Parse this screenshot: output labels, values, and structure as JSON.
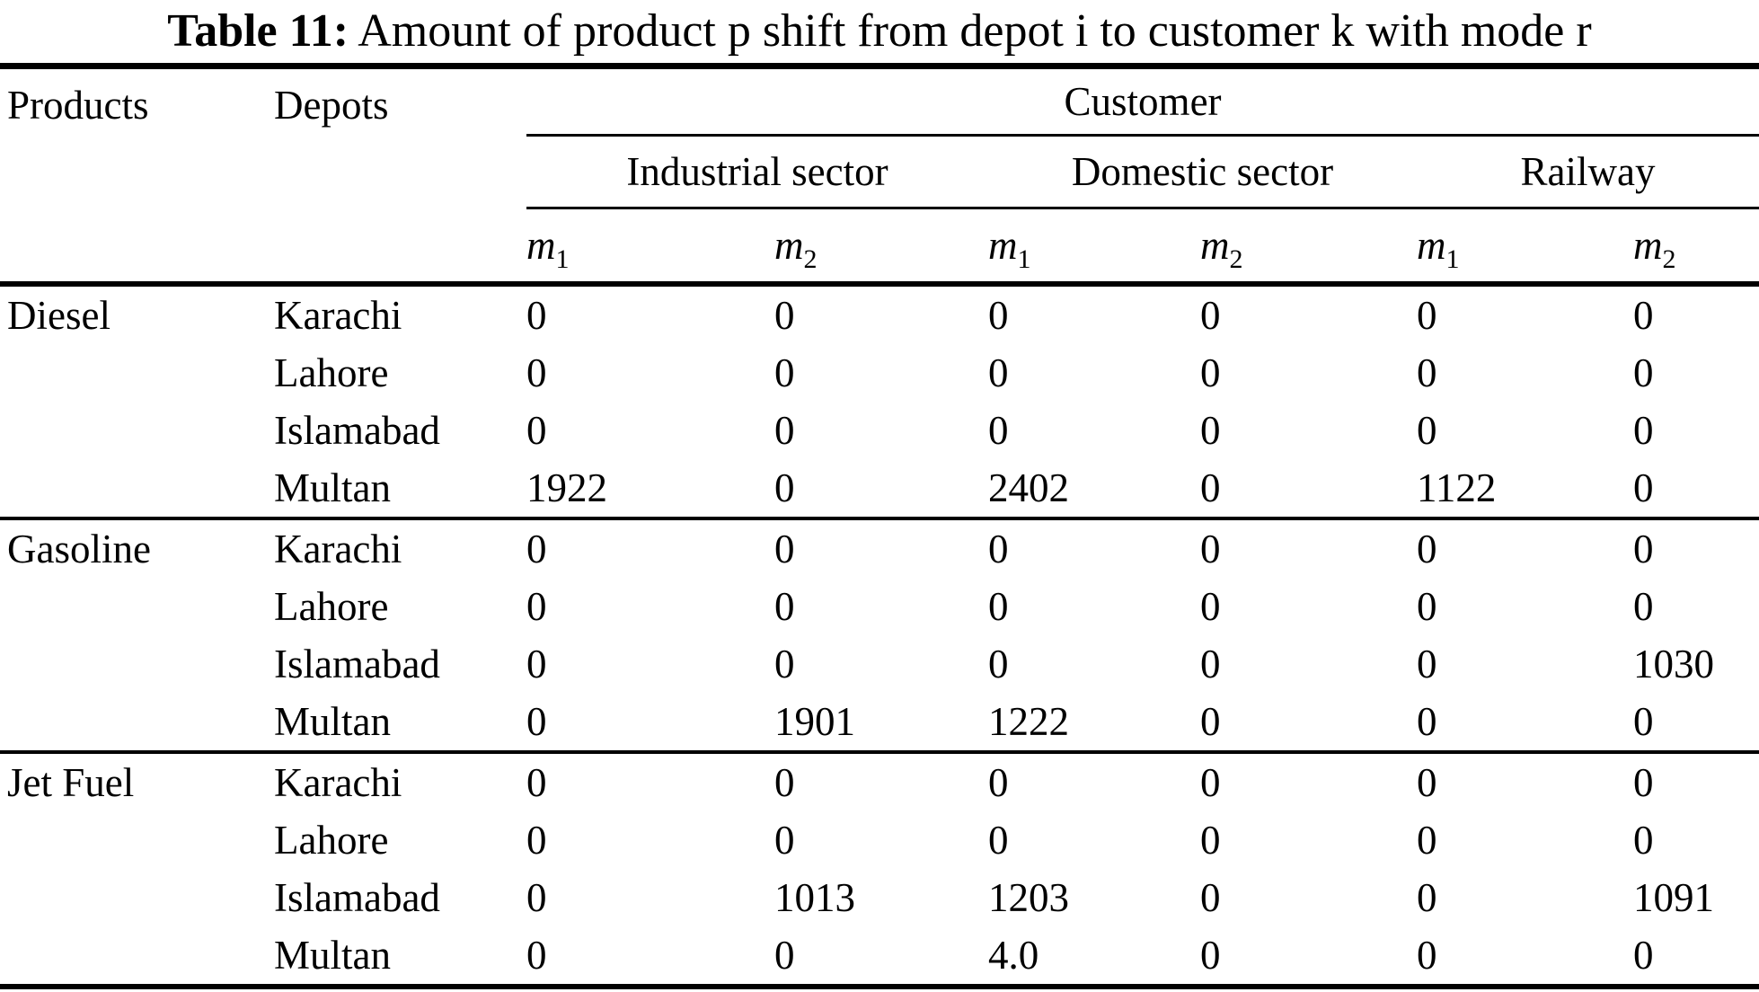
{
  "title": {
    "label": "Table 11:",
    "text": "Amount of product p shift from depot i to customer k with mode r"
  },
  "table": {
    "col_products": "Products",
    "col_depots": "Depots",
    "col_customer": "Customer",
    "sectors": [
      "Industrial sector",
      "Domestic sector",
      "Railway"
    ],
    "modes": [
      {
        "base": "m",
        "sub": "1"
      },
      {
        "base": "m",
        "sub": "2"
      },
      {
        "base": "m",
        "sub": "1"
      },
      {
        "base": "m",
        "sub": "2"
      },
      {
        "base": "m",
        "sub": "1"
      },
      {
        "base": "m",
        "sub": "2"
      }
    ],
    "groups": [
      {
        "product": "Diesel",
        "rows": [
          {
            "depot": "Karachi",
            "values": [
              "0",
              "0",
              "0",
              "0",
              "0",
              "0"
            ]
          },
          {
            "depot": "Lahore",
            "values": [
              "0",
              "0",
              "0",
              "0",
              "0",
              "0"
            ]
          },
          {
            "depot": "Islamabad",
            "values": [
              "0",
              "0",
              "0",
              "0",
              "0",
              "0"
            ]
          },
          {
            "depot": "Multan",
            "values": [
              "1922",
              "0",
              "2402",
              "0",
              "1122",
              "0"
            ]
          }
        ]
      },
      {
        "product": "Gasoline",
        "rows": [
          {
            "depot": "Karachi",
            "values": [
              "0",
              "0",
              "0",
              "0",
              "0",
              "0"
            ]
          },
          {
            "depot": "Lahore",
            "values": [
              "0",
              "0",
              "0",
              "0",
              "0",
              "0"
            ]
          },
          {
            "depot": "Islamabad",
            "values": [
              "0",
              "0",
              "0",
              "0",
              "0",
              "1030"
            ]
          },
          {
            "depot": "Multan",
            "values": [
              "0",
              "1901",
              "1222",
              "0",
              "0",
              "0"
            ]
          }
        ]
      },
      {
        "product": "Jet Fuel",
        "rows": [
          {
            "depot": "Karachi",
            "values": [
              "0",
              "0",
              "0",
              "0",
              "0",
              "0"
            ]
          },
          {
            "depot": "Lahore",
            "values": [
              "0",
              "0",
              "0",
              "0",
              "0",
              "0"
            ]
          },
          {
            "depot": "Islamabad",
            "values": [
              "0",
              "1013",
              "1203",
              "0",
              "0",
              "1091"
            ]
          },
          {
            "depot": "Multan",
            "values": [
              "0",
              "0",
              "4.0",
              "0",
              "0",
              "0"
            ]
          }
        ]
      }
    ]
  }
}
